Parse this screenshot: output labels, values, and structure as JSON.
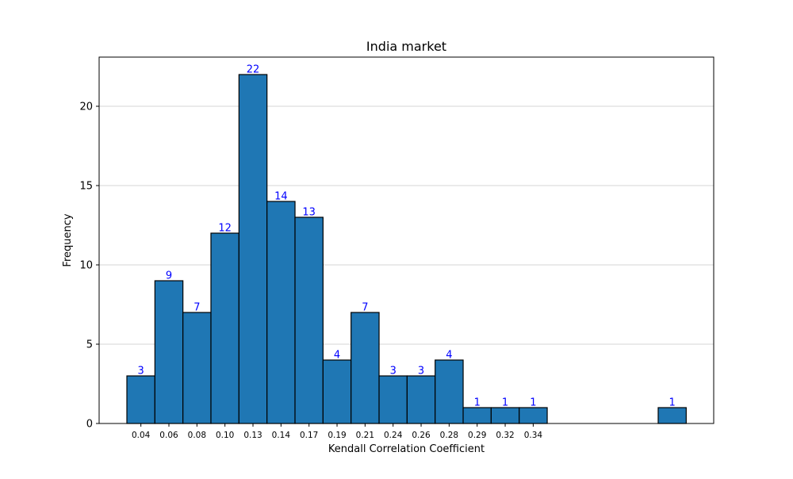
{
  "chart_data": {
    "type": "bar",
    "title": "India market",
    "xlabel": "Kendall Correlation Coefficient",
    "ylabel": "Frequency",
    "ylim": [
      0,
      23.1
    ],
    "yticks": [
      0,
      5,
      10,
      15,
      20
    ],
    "grid": "y",
    "bar_color": "#1f77b4",
    "edge_color": "#000000",
    "label_color": "#0000ff",
    "series": [
      {
        "bins": [
          {
            "x": 0.04,
            "tick": "0.04",
            "value": 3
          },
          {
            "x": 0.06,
            "tick": "0.06",
            "value": 9
          },
          {
            "x": 0.08,
            "tick": "0.08",
            "value": 7
          },
          {
            "x": 0.1,
            "tick": "0.10",
            "value": 12
          },
          {
            "x": 0.13,
            "tick": "0.13",
            "value": 22
          },
          {
            "x": 0.14,
            "tick": "0.14",
            "value": 14
          },
          {
            "x": 0.17,
            "tick": "0.17",
            "value": 13
          },
          {
            "x": 0.19,
            "tick": "0.19",
            "value": 4
          },
          {
            "x": 0.21,
            "tick": "0.21",
            "value": 7
          },
          {
            "x": 0.24,
            "tick": "0.24",
            "value": 3
          },
          {
            "x": 0.26,
            "tick": "0.26",
            "value": 3
          },
          {
            "x": 0.28,
            "tick": "0.28",
            "value": 4
          },
          {
            "x": 0.29,
            "tick": "0.29",
            "value": 1
          },
          {
            "x": 0.32,
            "tick": "0.32",
            "value": 1
          },
          {
            "x": 0.34,
            "tick": "0.34",
            "value": 1
          },
          {
            "x": 0.42,
            "tick": "",
            "value": 1
          }
        ]
      }
    ]
  }
}
